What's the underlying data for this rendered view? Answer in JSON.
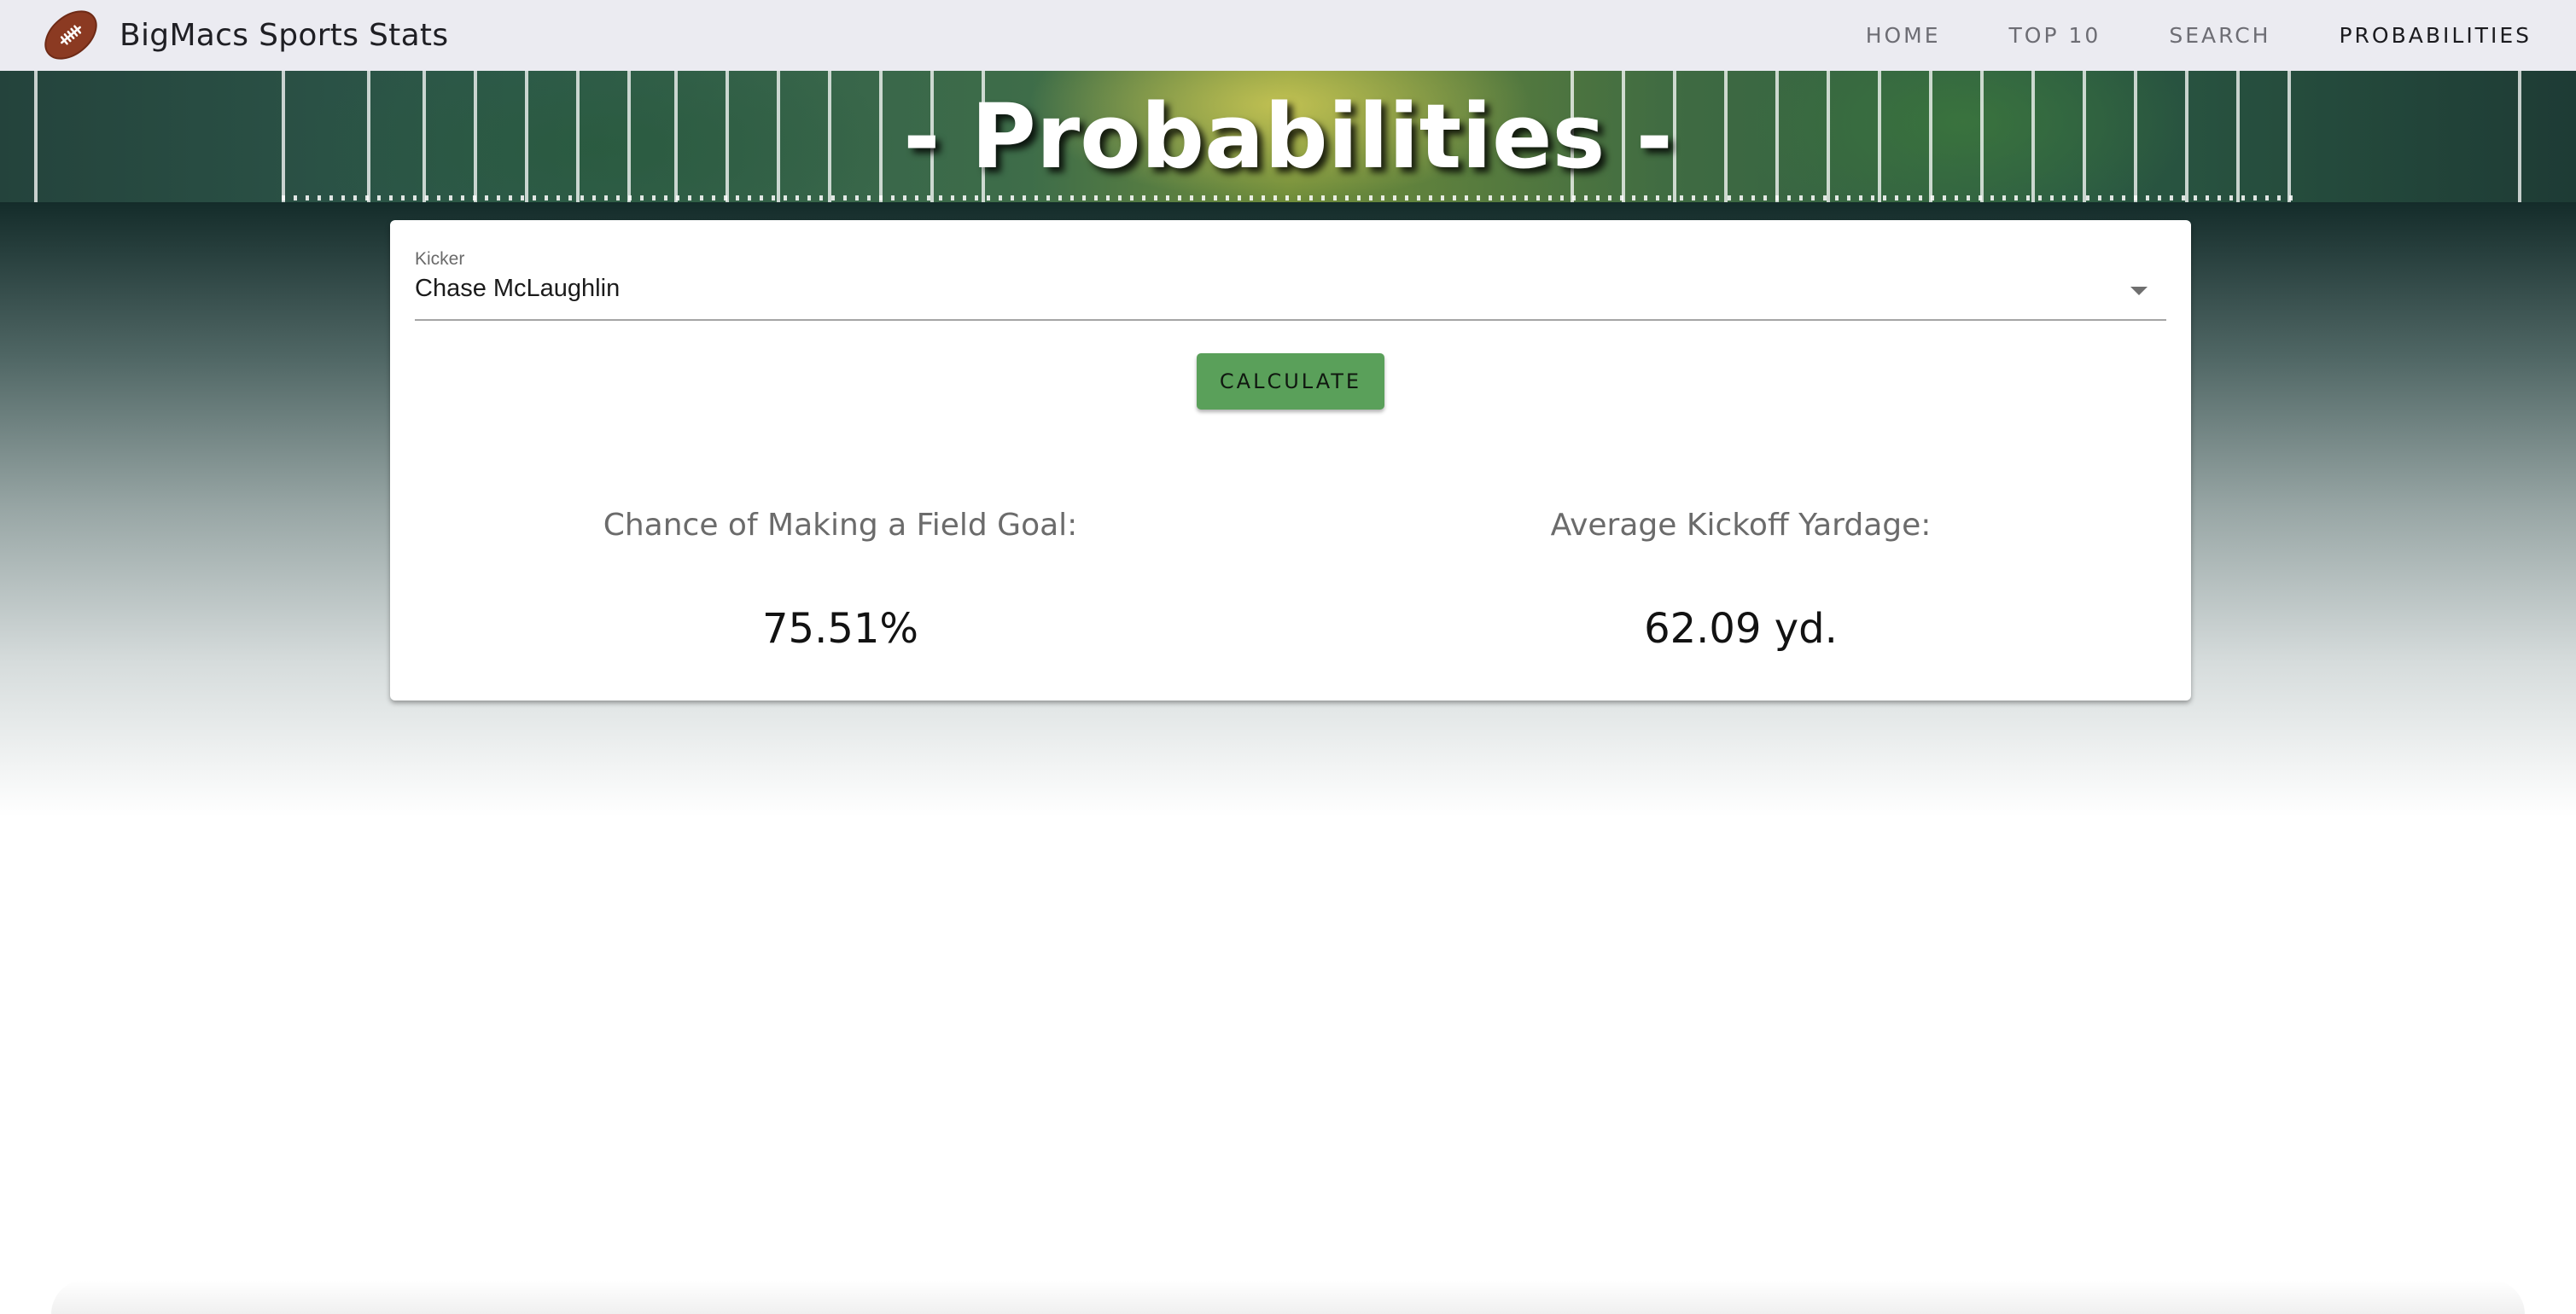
{
  "app": {
    "title": "BigMacs Sports Stats",
    "logo_icon": "football-icon"
  },
  "nav": {
    "items": [
      {
        "label": "HOME",
        "active": false
      },
      {
        "label": "TOP 10",
        "active": false
      },
      {
        "label": "SEARCH",
        "active": false
      },
      {
        "label": "PROBABILITIES",
        "active": true
      }
    ]
  },
  "hero": {
    "title": "- Probabilities -"
  },
  "form": {
    "kicker_label": "Kicker",
    "kicker_value": "Chase McLaughlin",
    "calculate_label": "CALCULATE"
  },
  "results": {
    "fg_label": "Chance of Making a Field Goal:",
    "fg_value": "75.51%",
    "kickoff_label": "Average Kickoff Yardage:",
    "kickoff_value": "62.09 yd."
  },
  "colors": {
    "appbar": "#ebebf1",
    "button": "#5aa05a",
    "football": "#8b3a22"
  }
}
